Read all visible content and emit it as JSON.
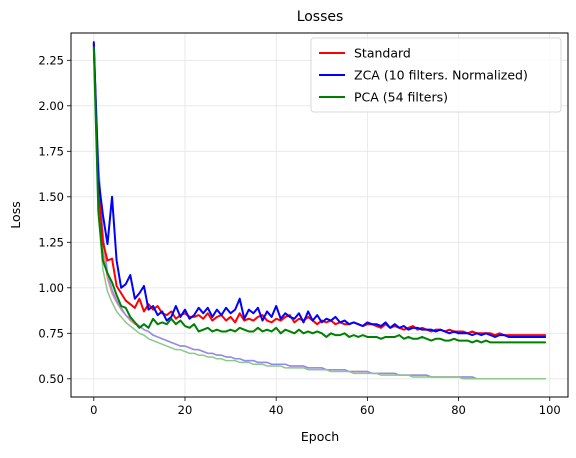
{
  "chart_data": {
    "type": "line",
    "title": "Losses",
    "xlabel": "Epoch",
    "ylabel": "Loss",
    "xlim": [
      -5,
      104
    ],
    "ylim": [
      0.4,
      2.4
    ],
    "xticks": [
      0,
      20,
      40,
      60,
      80,
      100
    ],
    "yticks": [
      0.5,
      0.75,
      1.0,
      1.25,
      1.5,
      1.75,
      2.0,
      2.25
    ],
    "xtick_labels": [
      "0",
      "20",
      "40",
      "60",
      "80",
      "100"
    ],
    "ytick_labels": [
      "0.50",
      "0.75",
      "1.00",
      "1.25",
      "1.50",
      "1.75",
      "2.00",
      "2.25"
    ],
    "grid": true,
    "legend_position": "top-right",
    "series": [
      {
        "name": "Standard",
        "color": "#ff0000",
        "role": "validation",
        "x": [
          0,
          1,
          2,
          3,
          4,
          5,
          6,
          7,
          8,
          9,
          10,
          11,
          12,
          13,
          14,
          15,
          16,
          17,
          18,
          19,
          20,
          21,
          22,
          23,
          24,
          25,
          26,
          27,
          28,
          29,
          30,
          31,
          32,
          33,
          34,
          35,
          36,
          37,
          38,
          39,
          40,
          41,
          42,
          43,
          44,
          45,
          46,
          47,
          48,
          49,
          50,
          51,
          52,
          53,
          54,
          55,
          56,
          57,
          58,
          59,
          60,
          61,
          62,
          63,
          64,
          65,
          66,
          67,
          68,
          69,
          70,
          71,
          72,
          73,
          74,
          75,
          76,
          77,
          78,
          79,
          80,
          81,
          82,
          83,
          84,
          85,
          86,
          87,
          88,
          89,
          90,
          91,
          92,
          93,
          94,
          95,
          96,
          97,
          98,
          99
        ],
        "y": [
          2.34,
          1.55,
          1.25,
          1.15,
          1.16,
          1.01,
          0.97,
          0.93,
          0.91,
          0.89,
          0.94,
          0.87,
          0.91,
          0.88,
          0.9,
          0.86,
          0.85,
          0.87,
          0.83,
          0.85,
          0.86,
          0.84,
          0.84,
          0.85,
          0.83,
          0.86,
          0.82,
          0.84,
          0.85,
          0.82,
          0.84,
          0.81,
          0.86,
          0.82,
          0.83,
          0.82,
          0.84,
          0.85,
          0.82,
          0.81,
          0.83,
          0.82,
          0.84,
          0.85,
          0.81,
          0.83,
          0.82,
          0.84,
          0.82,
          0.8,
          0.82,
          0.81,
          0.82,
          0.8,
          0.81,
          0.8,
          0.8,
          0.81,
          0.8,
          0.79,
          0.8,
          0.8,
          0.79,
          0.78,
          0.8,
          0.78,
          0.79,
          0.78,
          0.77,
          0.78,
          0.79,
          0.77,
          0.78,
          0.77,
          0.76,
          0.77,
          0.77,
          0.76,
          0.77,
          0.76,
          0.76,
          0.76,
          0.75,
          0.76,
          0.75,
          0.75,
          0.75,
          0.75,
          0.74,
          0.75,
          0.74,
          0.74,
          0.74,
          0.74,
          0.74,
          0.74,
          0.74,
          0.74,
          0.74,
          0.74
        ]
      },
      {
        "name": "ZCA (10 filters. Normalized)",
        "color": "#0000ff",
        "role": "validation",
        "x": [
          0,
          1,
          2,
          3,
          4,
          5,
          6,
          7,
          8,
          9,
          10,
          11,
          12,
          13,
          14,
          15,
          16,
          17,
          18,
          19,
          20,
          21,
          22,
          23,
          24,
          25,
          26,
          27,
          28,
          29,
          30,
          31,
          32,
          33,
          34,
          35,
          36,
          37,
          38,
          39,
          40,
          41,
          42,
          43,
          44,
          45,
          46,
          47,
          48,
          49,
          50,
          51,
          52,
          53,
          54,
          55,
          56,
          57,
          58,
          59,
          60,
          61,
          62,
          63,
          64,
          65,
          66,
          67,
          68,
          69,
          70,
          71,
          72,
          73,
          74,
          75,
          76,
          77,
          78,
          79,
          80,
          81,
          82,
          83,
          84,
          85,
          86,
          87,
          88,
          89,
          90,
          91,
          92,
          93,
          94,
          95,
          96,
          97,
          98,
          99
        ],
        "y": [
          2.35,
          1.6,
          1.4,
          1.24,
          1.5,
          1.15,
          1.0,
          1.02,
          1.07,
          0.94,
          0.97,
          1.01,
          0.88,
          0.9,
          0.85,
          0.87,
          0.82,
          0.84,
          0.9,
          0.84,
          0.88,
          0.83,
          0.85,
          0.89,
          0.86,
          0.89,
          0.84,
          0.88,
          0.85,
          0.89,
          0.86,
          0.88,
          0.94,
          0.83,
          0.88,
          0.86,
          0.89,
          0.82,
          0.87,
          0.84,
          0.9,
          0.83,
          0.86,
          0.84,
          0.83,
          0.86,
          0.81,
          0.87,
          0.82,
          0.85,
          0.81,
          0.83,
          0.82,
          0.84,
          0.81,
          0.82,
          0.8,
          0.81,
          0.8,
          0.79,
          0.81,
          0.8,
          0.8,
          0.79,
          0.81,
          0.78,
          0.8,
          0.78,
          0.79,
          0.77,
          0.78,
          0.78,
          0.77,
          0.77,
          0.77,
          0.76,
          0.77,
          0.76,
          0.75,
          0.76,
          0.75,
          0.75,
          0.75,
          0.74,
          0.75,
          0.74,
          0.75,
          0.74,
          0.73,
          0.74,
          0.74,
          0.73,
          0.73,
          0.73,
          0.73,
          0.73,
          0.73,
          0.73,
          0.73,
          0.73
        ]
      },
      {
        "name": "PCA (54 filters)",
        "color": "#008000",
        "role": "validation",
        "x": [
          0,
          1,
          2,
          3,
          4,
          5,
          6,
          7,
          8,
          9,
          10,
          11,
          12,
          13,
          14,
          15,
          16,
          17,
          18,
          19,
          20,
          21,
          22,
          23,
          24,
          25,
          26,
          27,
          28,
          29,
          30,
          31,
          32,
          33,
          34,
          35,
          36,
          37,
          38,
          39,
          40,
          41,
          42,
          43,
          44,
          45,
          46,
          47,
          48,
          49,
          50,
          51,
          52,
          53,
          54,
          55,
          56,
          57,
          58,
          59,
          60,
          61,
          62,
          63,
          64,
          65,
          66,
          67,
          68,
          69,
          70,
          71,
          72,
          73,
          74,
          75,
          76,
          77,
          78,
          79,
          80,
          81,
          82,
          83,
          84,
          85,
          86,
          87,
          88,
          89,
          90,
          91,
          92,
          93,
          94,
          95,
          96,
          97,
          98,
          99
        ],
        "y": [
          2.32,
          1.42,
          1.15,
          1.08,
          1.03,
          0.96,
          0.9,
          0.89,
          0.84,
          0.81,
          0.78,
          0.8,
          0.78,
          0.83,
          0.8,
          0.81,
          0.8,
          0.83,
          0.8,
          0.82,
          0.79,
          0.78,
          0.8,
          0.76,
          0.77,
          0.78,
          0.76,
          0.77,
          0.76,
          0.76,
          0.77,
          0.76,
          0.78,
          0.77,
          0.76,
          0.76,
          0.78,
          0.76,
          0.77,
          0.76,
          0.78,
          0.75,
          0.77,
          0.76,
          0.75,
          0.77,
          0.75,
          0.76,
          0.75,
          0.76,
          0.75,
          0.73,
          0.75,
          0.74,
          0.74,
          0.75,
          0.73,
          0.74,
          0.73,
          0.74,
          0.73,
          0.73,
          0.73,
          0.72,
          0.73,
          0.73,
          0.73,
          0.74,
          0.72,
          0.73,
          0.72,
          0.72,
          0.73,
          0.72,
          0.71,
          0.72,
          0.72,
          0.71,
          0.71,
          0.72,
          0.71,
          0.71,
          0.71,
          0.7,
          0.71,
          0.7,
          0.71,
          0.7,
          0.7,
          0.7,
          0.7,
          0.7,
          0.7,
          0.7,
          0.7,
          0.7,
          0.7,
          0.7,
          0.7,
          0.7
        ]
      },
      {
        "color": "#f28c8c",
        "role": "training",
        "x": [
          0,
          1,
          2,
          3,
          4,
          5,
          6,
          7,
          8,
          9,
          10,
          11,
          12,
          13,
          14,
          15,
          16,
          17,
          18,
          19,
          20,
          21,
          22,
          23,
          24,
          25,
          26,
          27,
          28,
          29,
          30,
          31,
          32,
          33,
          34,
          35,
          36,
          37,
          38,
          39,
          40,
          41,
          42,
          43,
          44,
          45,
          46,
          47,
          48,
          49,
          50,
          51,
          52,
          53,
          54,
          55,
          56,
          57,
          58,
          59,
          60,
          61,
          62,
          63,
          64,
          65,
          66,
          67,
          68,
          69,
          70,
          71,
          72,
          73,
          74,
          75,
          76,
          77,
          78,
          79,
          80,
          81,
          82,
          83,
          84,
          85,
          86,
          87,
          88,
          89,
          90,
          91,
          92,
          93,
          94,
          95,
          96,
          97,
          98,
          99
        ],
        "y": [
          2.33,
          1.6,
          1.22,
          1.05,
          0.97,
          0.92,
          0.88,
          0.85,
          0.82,
          0.8,
          0.79,
          0.77,
          0.76,
          0.74,
          0.73,
          0.72,
          0.71,
          0.7,
          0.69,
          0.68,
          0.68,
          0.67,
          0.66,
          0.66,
          0.65,
          0.64,
          0.64,
          0.63,
          0.63,
          0.62,
          0.62,
          0.61,
          0.61,
          0.6,
          0.6,
          0.6,
          0.59,
          0.59,
          0.59,
          0.58,
          0.58,
          0.58,
          0.58,
          0.57,
          0.57,
          0.57,
          0.57,
          0.56,
          0.56,
          0.56,
          0.56,
          0.55,
          0.55,
          0.55,
          0.55,
          0.55,
          0.54,
          0.54,
          0.54,
          0.54,
          0.54,
          0.53,
          0.53,
          0.53,
          0.53,
          0.53,
          0.53,
          0.52,
          0.52,
          0.52,
          0.52,
          0.52,
          0.52,
          0.52,
          0.51,
          0.51,
          0.51,
          0.51,
          0.51,
          0.51,
          0.51,
          0.51,
          0.51,
          0.51,
          0.5,
          0.5,
          0.5,
          0.5,
          0.5,
          0.5,
          0.5,
          0.5,
          0.5,
          0.5,
          0.5,
          0.5,
          0.5,
          0.5,
          0.5,
          0.5
        ]
      },
      {
        "color": "#8c8cf2",
        "role": "training",
        "x": [
          0,
          1,
          2,
          3,
          4,
          5,
          6,
          7,
          8,
          9,
          10,
          11,
          12,
          13,
          14,
          15,
          16,
          17,
          18,
          19,
          20,
          21,
          22,
          23,
          24,
          25,
          26,
          27,
          28,
          29,
          30,
          31,
          32,
          33,
          34,
          35,
          36,
          37,
          38,
          39,
          40,
          41,
          42,
          43,
          44,
          45,
          46,
          47,
          48,
          49,
          50,
          51,
          52,
          53,
          54,
          55,
          56,
          57,
          58,
          59,
          60,
          61,
          62,
          63,
          64,
          65,
          66,
          67,
          68,
          69,
          70,
          71,
          72,
          73,
          74,
          75,
          76,
          77,
          78,
          79,
          80,
          81,
          82,
          83,
          84,
          85,
          86,
          87,
          88,
          89,
          90,
          91,
          92,
          93,
          94,
          95,
          96,
          97,
          98,
          99
        ],
        "y": [
          2.34,
          1.7,
          1.3,
          1.08,
          0.99,
          0.93,
          0.89,
          0.85,
          0.83,
          0.81,
          0.79,
          0.77,
          0.76,
          0.74,
          0.73,
          0.72,
          0.71,
          0.7,
          0.69,
          0.68,
          0.68,
          0.67,
          0.66,
          0.66,
          0.65,
          0.64,
          0.64,
          0.63,
          0.63,
          0.62,
          0.62,
          0.61,
          0.61,
          0.6,
          0.6,
          0.6,
          0.59,
          0.59,
          0.59,
          0.58,
          0.58,
          0.58,
          0.58,
          0.57,
          0.57,
          0.57,
          0.57,
          0.56,
          0.56,
          0.56,
          0.56,
          0.55,
          0.55,
          0.55,
          0.55,
          0.55,
          0.54,
          0.54,
          0.54,
          0.54,
          0.54,
          0.53,
          0.53,
          0.53,
          0.53,
          0.53,
          0.53,
          0.52,
          0.52,
          0.52,
          0.52,
          0.52,
          0.52,
          0.52,
          0.51,
          0.51,
          0.51,
          0.51,
          0.51,
          0.51,
          0.51,
          0.51,
          0.51,
          0.51,
          0.5,
          0.5,
          0.5,
          0.5,
          0.5,
          0.5,
          0.5,
          0.5,
          0.5,
          0.5,
          0.5,
          0.5,
          0.5,
          0.5,
          0.5,
          0.5
        ]
      },
      {
        "color": "#8cc88c",
        "role": "training",
        "x": [
          0,
          1,
          2,
          3,
          4,
          5,
          6,
          7,
          8,
          9,
          10,
          11,
          12,
          13,
          14,
          15,
          16,
          17,
          18,
          19,
          20,
          21,
          22,
          23,
          24,
          25,
          26,
          27,
          28,
          29,
          30,
          31,
          32,
          33,
          34,
          35,
          36,
          37,
          38,
          39,
          40,
          41,
          42,
          43,
          44,
          45,
          46,
          47,
          48,
          49,
          50,
          51,
          52,
          53,
          54,
          55,
          56,
          57,
          58,
          59,
          60,
          61,
          62,
          63,
          64,
          65,
          66,
          67,
          68,
          69,
          70,
          71,
          72,
          73,
          74,
          75,
          76,
          77,
          78,
          79,
          80,
          81,
          82,
          83,
          84,
          85,
          86,
          87,
          88,
          89,
          90,
          91,
          92,
          93,
          94,
          95,
          96,
          97,
          98,
          99
        ],
        "y": [
          2.31,
          1.4,
          1.1,
          0.98,
          0.92,
          0.87,
          0.84,
          0.81,
          0.79,
          0.77,
          0.75,
          0.74,
          0.72,
          0.71,
          0.7,
          0.69,
          0.68,
          0.67,
          0.66,
          0.66,
          0.65,
          0.64,
          0.64,
          0.63,
          0.63,
          0.62,
          0.62,
          0.61,
          0.61,
          0.6,
          0.6,
          0.6,
          0.59,
          0.59,
          0.59,
          0.58,
          0.58,
          0.58,
          0.57,
          0.57,
          0.57,
          0.57,
          0.56,
          0.56,
          0.56,
          0.56,
          0.56,
          0.55,
          0.55,
          0.55,
          0.55,
          0.55,
          0.54,
          0.54,
          0.54,
          0.54,
          0.54,
          0.53,
          0.53,
          0.53,
          0.53,
          0.53,
          0.53,
          0.52,
          0.52,
          0.52,
          0.52,
          0.52,
          0.52,
          0.52,
          0.51,
          0.51,
          0.51,
          0.51,
          0.51,
          0.51,
          0.51,
          0.51,
          0.51,
          0.51,
          0.51,
          0.5,
          0.5,
          0.5,
          0.5,
          0.5,
          0.5,
          0.5,
          0.5,
          0.5,
          0.5,
          0.5,
          0.5,
          0.5,
          0.5,
          0.5,
          0.5,
          0.5,
          0.5,
          0.5
        ]
      }
    ]
  }
}
